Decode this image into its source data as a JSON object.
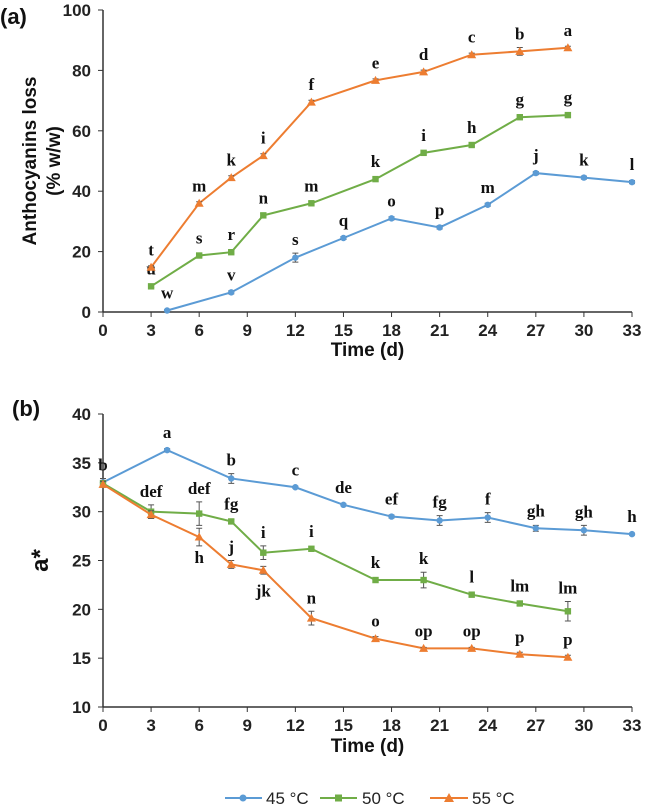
{
  "legend": [
    "45 °C",
    "50 °C",
    "55 °C"
  ],
  "colors": {
    "45": "#5b9bd5",
    "50": "#70ad47",
    "55": "#ed7d31",
    "axis": "#333333",
    "error": "#555555"
  },
  "chart_data": [
    {
      "type": "line",
      "panel_label": "(a)",
      "ylabel_line1": "Anthocyanins loss",
      "ylabel_line2": "(% w/w)",
      "xlabel": "Time (d)",
      "xlim": [
        0,
        33
      ],
      "ylim": [
        0,
        100
      ],
      "xticks": [
        "0",
        "3",
        "6",
        "9",
        "12",
        "15",
        "18",
        "21",
        "24",
        "27",
        "30",
        "33"
      ],
      "yticks": [
        "0",
        "20",
        "40",
        "60",
        "80",
        "100"
      ],
      "series": [
        {
          "name": "45 °C",
          "marker": "circle",
          "x": [
            4,
            8,
            12,
            15,
            18,
            21,
            24,
            27,
            30,
            33
          ],
          "y": [
            0.5,
            6.5,
            18,
            24.5,
            31,
            28,
            35.5,
            46,
            44.5,
            43
          ],
          "err": [
            0.3,
            0.5,
            1.5,
            0.5,
            0.5,
            0.5,
            0.5,
            0.5,
            0.5,
            0.5
          ],
          "labels": [
            "w",
            "v",
            "s",
            "q",
            "o",
            "p",
            "m",
            "j",
            "k",
            "l"
          ]
        },
        {
          "name": "50 °C",
          "marker": "square",
          "x": [
            3,
            6,
            8,
            10,
            13,
            17,
            20,
            23,
            26,
            29
          ],
          "y": [
            8.5,
            18.7,
            19.8,
            32,
            36,
            44,
            52.7,
            55.3,
            64.5,
            65.2
          ],
          "err": [
            0.4,
            0.4,
            0.4,
            0.6,
            0.6,
            0.4,
            0.6,
            0.4,
            0.5,
            0.5
          ],
          "labels": [
            "u",
            "s",
            "r",
            "n",
            "m",
            "k",
            "i",
            "h",
            "g",
            "g"
          ]
        },
        {
          "name": "55 °C",
          "marker": "triangle",
          "x": [
            3,
            6,
            8,
            10,
            13,
            17,
            20,
            23,
            26,
            29
          ],
          "y": [
            14.8,
            36,
            44.5,
            51.8,
            69.5,
            76.7,
            79.5,
            85.2,
            86.3,
            87.5
          ],
          "err": [
            0.5,
            0.5,
            0.6,
            0.6,
            0.6,
            0.5,
            0.6,
            0.5,
            1.3,
            0.5
          ],
          "labels": [
            "t",
            "m",
            "k",
            "i",
            "f",
            "e",
            "d",
            "c",
            "b",
            "a"
          ]
        }
      ]
    },
    {
      "type": "line",
      "panel_label": "(b)",
      "ylabel_line1": "a*",
      "xlabel": "Time (d)",
      "xlim": [
        0,
        33
      ],
      "ylim": [
        10,
        40
      ],
      "xticks": [
        "0",
        "3",
        "6",
        "9",
        "12",
        "15",
        "18",
        "21",
        "24",
        "27",
        "30",
        "33"
      ],
      "yticks": [
        "10",
        "15",
        "20",
        "25",
        "30",
        "35",
        "40"
      ],
      "series": [
        {
          "name": "45 °C",
          "marker": "circle",
          "x": [
            0,
            4,
            8,
            12,
            15,
            18,
            21,
            24,
            27,
            30,
            33
          ],
          "y": [
            33,
            36.3,
            33.4,
            32.5,
            30.7,
            29.5,
            29.1,
            29.4,
            28.3,
            28.1,
            27.7
          ],
          "err": [
            0.4,
            0.15,
            0.5,
            0.1,
            0.1,
            0.15,
            0.5,
            0.5,
            0.3,
            0.5,
            0.1
          ],
          "labels": [
            "b",
            "a",
            "b",
            "c",
            "de",
            "ef",
            "fg",
            "f",
            "gh",
            "gh",
            "h"
          ]
        },
        {
          "name": "50 °C",
          "marker": "square",
          "x": [
            0,
            3,
            6,
            8,
            10,
            13,
            17,
            20,
            23,
            26,
            29
          ],
          "y": [
            32.9,
            30,
            29.8,
            29,
            25.8,
            26.2,
            23,
            23,
            21.5,
            20.6,
            19.8
          ],
          "err": [
            0.3,
            0.7,
            1.2,
            0.2,
            0.7,
            0.2,
            0.2,
            0.8,
            0.1,
            0.2,
            1.0
          ],
          "labels": [
            "",
            "def",
            "def",
            "fg",
            "i",
            "i",
            "k",
            "k",
            "l",
            "lm",
            "lm"
          ]
        },
        {
          "name": "55 °C",
          "marker": "triangle",
          "x": [
            0,
            3,
            6,
            8,
            10,
            13,
            17,
            20,
            23,
            26,
            29
          ],
          "y": [
            32.8,
            29.7,
            27.4,
            24.6,
            24,
            19.1,
            17,
            16,
            16,
            15.4,
            15.1
          ],
          "err": [
            0.3,
            0.4,
            0.9,
            0.4,
            0.4,
            0.7,
            0.2,
            0.1,
            0.1,
            0.2,
            0.2
          ],
          "labels": [
            "",
            "",
            "h",
            "j",
            "jk",
            "n",
            "o",
            "op",
            "op",
            "p",
            "p"
          ]
        }
      ]
    }
  ]
}
